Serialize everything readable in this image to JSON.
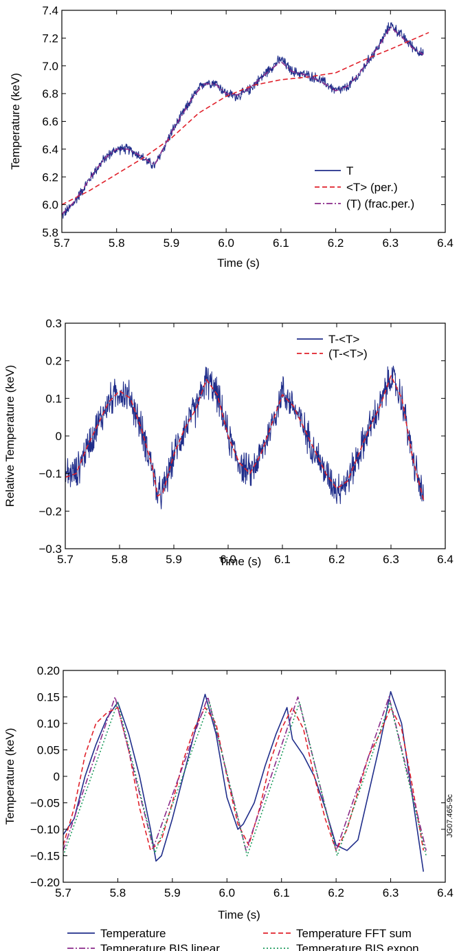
{
  "figure_id": "JG07.465-9c",
  "colors": {
    "blue": "#1f2d8a",
    "red": "#e0202a",
    "purple": "#8a2a8a",
    "green": "#1a9a5a"
  },
  "chart_data": [
    {
      "type": "line",
      "xlabel": "Time (s)",
      "ylabel": "Temperature (keV)",
      "xlim": [
        5.7,
        6.4
      ],
      "ylim": [
        5.8,
        7.4
      ],
      "xticks": [
        "5.7",
        "5.8",
        "5.9",
        "6.0",
        "6.1",
        "6.2",
        "6.3",
        "6.4"
      ],
      "yticks": [
        "5.8",
        "6.0",
        "6.2",
        "6.4",
        "6.6",
        "6.8",
        "7.0",
        "7.2",
        "7.4"
      ],
      "legend_position": "bottom-right",
      "series": [
        {
          "name": "T",
          "style": "solid",
          "color": "#1f2d8a",
          "noise": 0.045,
          "x": [
            5.7,
            5.72,
            5.74,
            5.76,
            5.78,
            5.8,
            5.82,
            5.84,
            5.86,
            5.87,
            5.9,
            5.92,
            5.94,
            5.96,
            5.98,
            6.0,
            6.02,
            6.04,
            6.06,
            6.08,
            6.1,
            6.12,
            6.14,
            6.16,
            6.18,
            6.2,
            6.22,
            6.24,
            6.26,
            6.28,
            6.3,
            6.32,
            6.34,
            6.36
          ],
          "y": [
            5.92,
            6.0,
            6.12,
            6.24,
            6.34,
            6.4,
            6.4,
            6.36,
            6.3,
            6.28,
            6.52,
            6.65,
            6.78,
            6.88,
            6.88,
            6.8,
            6.78,
            6.82,
            6.9,
            6.98,
            7.05,
            6.96,
            6.94,
            6.92,
            6.88,
            6.82,
            6.84,
            6.92,
            7.04,
            7.15,
            7.3,
            7.22,
            7.14,
            7.08
          ]
        },
        {
          "name": "<T> (per.)",
          "style": "dashed",
          "color": "#e0202a",
          "noise": 0,
          "x": [
            5.7,
            5.75,
            5.8,
            5.85,
            5.9,
            5.95,
            6.0,
            6.05,
            6.1,
            6.15,
            6.2,
            6.25,
            6.3,
            6.37
          ],
          "y": [
            6.0,
            6.1,
            6.22,
            6.34,
            6.48,
            6.66,
            6.78,
            6.86,
            6.9,
            6.92,
            6.95,
            7.04,
            7.12,
            7.24
          ]
        },
        {
          "name": "(T) (frac.per.)",
          "style": "dashdot",
          "color": "#8a2a8a",
          "noise": 0,
          "x": [
            5.7,
            5.72,
            5.74,
            5.76,
            5.78,
            5.8,
            5.82,
            5.84,
            5.86,
            5.87,
            5.9,
            5.92,
            5.94,
            5.96,
            5.98,
            6.0,
            6.02,
            6.04,
            6.06,
            6.08,
            6.1,
            6.12,
            6.14,
            6.16,
            6.18,
            6.2,
            6.22,
            6.24,
            6.26,
            6.28,
            6.3,
            6.32,
            6.34,
            6.36
          ],
          "y": [
            5.93,
            6.01,
            6.12,
            6.24,
            6.34,
            6.4,
            6.4,
            6.36,
            6.31,
            6.29,
            6.52,
            6.65,
            6.78,
            6.87,
            6.87,
            6.8,
            6.79,
            6.83,
            6.9,
            6.97,
            7.03,
            6.96,
            6.94,
            6.91,
            6.87,
            6.82,
            6.85,
            6.93,
            7.04,
            7.15,
            7.28,
            7.21,
            7.13,
            7.08
          ]
        }
      ]
    },
    {
      "type": "line",
      "xlabel": "Time (s)",
      "ylabel": "Relative Temperature (keV)",
      "xlim": [
        5.7,
        6.4
      ],
      "ylim": [
        -0.3,
        0.3
      ],
      "xticks": [
        "5.7",
        "5.8",
        "5.9",
        "6.0",
        "6.1",
        "6.2",
        "6.3",
        "6.4"
      ],
      "yticks": [
        "−0.3",
        "−0.2",
        "−0.1",
        "0",
        "0.1",
        "0.2",
        "0.3"
      ],
      "legend_position": "top-right",
      "series": [
        {
          "name": "T-<T>",
          "style": "solid",
          "color": "#1f2d8a",
          "noise": 0.055,
          "x": [
            5.7,
            5.72,
            5.74,
            5.76,
            5.78,
            5.8,
            5.82,
            5.84,
            5.86,
            5.87,
            5.88,
            5.9,
            5.92,
            5.94,
            5.96,
            5.98,
            6.0,
            6.02,
            6.04,
            6.06,
            6.08,
            6.1,
            6.12,
            6.14,
            6.16,
            6.18,
            6.2,
            6.22,
            6.24,
            6.26,
            6.28,
            6.3,
            6.32,
            6.34,
            6.36
          ],
          "y": [
            -0.1,
            -0.1,
            -0.03,
            0.03,
            0.09,
            0.12,
            0.1,
            0.02,
            -0.08,
            -0.16,
            -0.15,
            -0.05,
            0.02,
            0.07,
            0.15,
            0.11,
            0.0,
            -0.07,
            -0.1,
            -0.05,
            0.03,
            0.12,
            0.08,
            0.02,
            -0.04,
            -0.1,
            -0.14,
            -0.12,
            -0.05,
            0.02,
            0.08,
            0.16,
            0.1,
            -0.06,
            -0.17
          ]
        },
        {
          "name": "(T-<T>)",
          "style": "dashed",
          "color": "#e0202a",
          "noise": 0,
          "x": [
            5.7,
            5.72,
            5.74,
            5.76,
            5.78,
            5.8,
            5.82,
            5.84,
            5.86,
            5.87,
            5.88,
            5.9,
            5.92,
            5.94,
            5.96,
            5.98,
            6.0,
            6.02,
            6.04,
            6.06,
            6.08,
            6.1,
            6.12,
            6.14,
            6.16,
            6.18,
            6.2,
            6.22,
            6.24,
            6.26,
            6.28,
            6.3,
            6.32,
            6.34,
            6.36
          ],
          "y": [
            -0.11,
            -0.1,
            -0.03,
            0.03,
            0.09,
            0.12,
            0.1,
            0.02,
            -0.08,
            -0.16,
            -0.15,
            -0.05,
            0.02,
            0.07,
            0.15,
            0.11,
            0.0,
            -0.07,
            -0.1,
            -0.05,
            0.03,
            0.11,
            0.08,
            0.02,
            -0.04,
            -0.1,
            -0.14,
            -0.12,
            -0.05,
            0.02,
            0.08,
            0.16,
            0.1,
            -0.06,
            -0.17
          ]
        }
      ]
    },
    {
      "type": "line",
      "xlabel": "Time (s)",
      "ylabel": "Temperature (keV)",
      "xlim": [
        5.7,
        6.4
      ],
      "ylim": [
        -0.2,
        0.2
      ],
      "xticks": [
        "5.7",
        "5.8",
        "5.9",
        "6.0",
        "6.1",
        "6.2",
        "6.3",
        "6.4"
      ],
      "yticks": [
        "−0.20",
        "−0.15",
        "−0.10",
        "−0.05",
        "0",
        "0.05",
        "0.10",
        "0.15",
        "0.20"
      ],
      "legend_position": "bottom",
      "series": [
        {
          "name": "Temperature",
          "style": "solid",
          "color": "#1f2d8a",
          "noise": 0,
          "x": [
            5.7,
            5.72,
            5.74,
            5.76,
            5.78,
            5.8,
            5.82,
            5.84,
            5.86,
            5.87,
            5.88,
            5.9,
            5.92,
            5.94,
            5.96,
            5.98,
            6.0,
            6.02,
            6.03,
            6.05,
            6.07,
            6.09,
            6.11,
            6.12,
            6.14,
            6.16,
            6.18,
            6.2,
            6.22,
            6.24,
            6.26,
            6.28,
            6.3,
            6.32,
            6.34,
            6.36
          ],
          "y": [
            -0.11,
            -0.08,
            0.0,
            0.06,
            0.11,
            0.14,
            0.08,
            0.0,
            -0.1,
            -0.16,
            -0.15,
            -0.08,
            0.0,
            0.08,
            0.155,
            0.08,
            -0.04,
            -0.1,
            -0.09,
            -0.05,
            0.02,
            0.08,
            0.13,
            0.07,
            0.04,
            0.0,
            -0.06,
            -0.13,
            -0.14,
            -0.12,
            -0.03,
            0.06,
            0.16,
            0.1,
            -0.04,
            -0.18
          ]
        },
        {
          "name": "Temperature FFT sum",
          "style": "dashed",
          "color": "#e0202a",
          "noise": 0,
          "x": [
            5.7,
            5.72,
            5.74,
            5.76,
            5.78,
            5.8,
            5.82,
            5.84,
            5.86,
            5.88,
            5.9,
            5.92,
            5.94,
            5.96,
            5.98,
            6.0,
            6.02,
            6.04,
            6.06,
            6.08,
            6.1,
            6.12,
            6.14,
            6.16,
            6.18,
            6.2,
            6.22,
            6.24,
            6.26,
            6.28,
            6.3,
            6.32,
            6.34,
            6.36
          ],
          "y": [
            -0.13,
            -0.06,
            0.04,
            0.1,
            0.12,
            0.13,
            0.05,
            -0.06,
            -0.14,
            -0.12,
            -0.05,
            0.03,
            0.09,
            0.13,
            0.1,
            0.0,
            -0.09,
            -0.13,
            -0.06,
            0.03,
            0.09,
            0.13,
            0.09,
            0.0,
            -0.08,
            -0.14,
            -0.1,
            -0.03,
            0.04,
            0.08,
            0.13,
            0.09,
            -0.02,
            -0.14
          ]
        },
        {
          "name": "Temperature BIS linear",
          "style": "dashdot",
          "color": "#8a2a8a",
          "noise": 0,
          "x": [
            5.7,
            5.795,
            5.865,
            5.965,
            6.035,
            6.13,
            6.2,
            6.297,
            6.365
          ],
          "y": [
            -0.14,
            0.15,
            -0.135,
            0.15,
            -0.14,
            0.15,
            -0.14,
            0.15,
            -0.14
          ]
        },
        {
          "name": "Temperature BIS expon",
          "style": "dotted",
          "color": "#1a9a5a",
          "noise": 0,
          "x": [
            5.7,
            5.8,
            5.868,
            5.968,
            6.037,
            6.133,
            6.202,
            6.299,
            6.365
          ],
          "y": [
            -0.15,
            0.14,
            -0.145,
            0.14,
            -0.15,
            0.14,
            -0.15,
            0.14,
            -0.15
          ]
        }
      ]
    }
  ]
}
